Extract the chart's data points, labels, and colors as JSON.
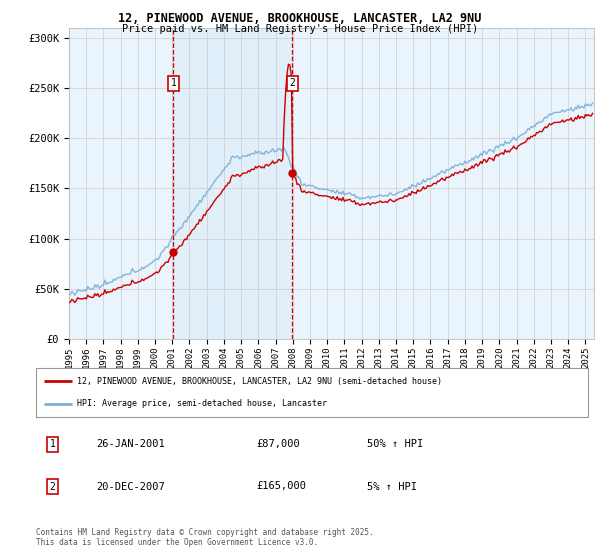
{
  "title1": "12, PINEWOOD AVENUE, BROOKHOUSE, LANCASTER, LA2 9NU",
  "title2": "Price paid vs. HM Land Registry's House Price Index (HPI)",
  "legend_line1": "12, PINEWOOD AVENUE, BROOKHOUSE, LANCASTER, LA2 9NU (semi-detached house)",
  "legend_line2": "HPI: Average price, semi-detached house, Lancaster",
  "annotation1_label": "1",
  "annotation1_date": "26-JAN-2001",
  "annotation1_price": "£87,000",
  "annotation1_hpi": "50% ↑ HPI",
  "annotation2_label": "2",
  "annotation2_date": "20-DEC-2007",
  "annotation2_price": "£165,000",
  "annotation2_hpi": "5% ↑ HPI",
  "footnote": "Contains HM Land Registry data © Crown copyright and database right 2025.\nThis data is licensed under the Open Government Licence v3.0.",
  "sale1_year": 2001.07,
  "sale1_price": 87000,
  "sale2_year": 2007.97,
  "sale2_price": 165000,
  "ylim_min": 0,
  "ylim_max": 310000,
  "xlim_min": 1995.0,
  "xlim_max": 2025.5,
  "hpi_line_color": "#7aafd4",
  "hpi_fill_color": "#d0e8f8",
  "price_line_color": "#cc0000",
  "background_color": "#ddeeff",
  "plot_bg_color": "#ffffff",
  "grid_color": "#cccccc",
  "annotation_vline_color": "#cc0000",
  "shade_color": "#d8ecf8",
  "ytick_labels": [
    "£0",
    "£50K",
    "£100K",
    "£150K",
    "£200K",
    "£250K",
    "£300K"
  ],
  "ytick_values": [
    0,
    50000,
    100000,
    150000,
    200000,
    250000,
    300000
  ],
  "xtick_years": [
    1995,
    1996,
    1997,
    1998,
    1999,
    2000,
    2001,
    2002,
    2003,
    2004,
    2005,
    2006,
    2007,
    2008,
    2009,
    2010,
    2011,
    2012,
    2013,
    2014,
    2015,
    2016,
    2017,
    2018,
    2019,
    2020,
    2021,
    2022,
    2023,
    2024,
    2025
  ]
}
